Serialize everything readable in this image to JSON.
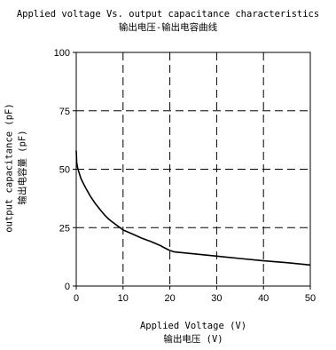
{
  "chart_data": {
    "type": "line",
    "title": "Applied voltage Vs. output capacitance characteristics",
    "subtitle": "输出电压-输出电容曲线",
    "xlabel": "Applied Voltage (V)",
    "xlabel_cn": "输出电压 (V)",
    "ylabel": "output capacitance (pF)",
    "ylabel_cn": "输出电容量 (pF)",
    "xlim": [
      0,
      50
    ],
    "ylim": [
      0,
      100
    ],
    "x_ticks": [
      0,
      10,
      20,
      30,
      40,
      50
    ],
    "y_ticks": [
      0,
      25,
      50,
      75,
      100
    ],
    "grid": true,
    "grid_style": "dashed",
    "series": [
      {
        "x": [
          0,
          0.1,
          0.3,
          0.6,
          1,
          1.5,
          2,
          3,
          4,
          5,
          6,
          7,
          8,
          9,
          10,
          12,
          14,
          16,
          18,
          19,
          20,
          21,
          25,
          30,
          35,
          40,
          45,
          50
        ],
        "values": [
          58,
          53,
          50.5,
          48.5,
          46,
          44,
          42,
          38.5,
          35.5,
          33,
          30.5,
          28.5,
          27,
          25.5,
          24,
          22.3,
          20.5,
          19,
          17.3,
          16.2,
          15.2,
          14.6,
          13.8,
          12.8,
          11.8,
          10.8,
          10,
          9
        ]
      }
    ]
  }
}
